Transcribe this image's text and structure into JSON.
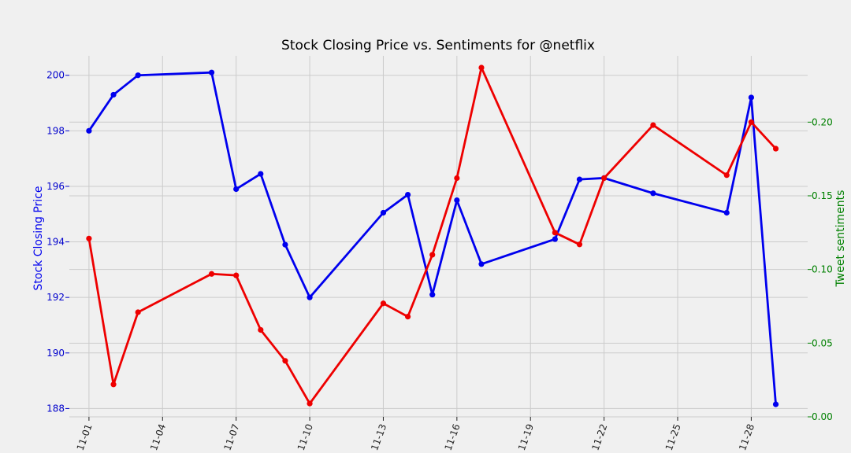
{
  "chart_data": {
    "type": "line",
    "title": "Stock Closing Price vs. Sentiments for @netflix",
    "ylabel_left": "Stock Closing Price",
    "ylabel_right": "Tweet sentiments",
    "x_tick_labels": [
      "11-01",
      "11-04",
      "11-07",
      "11-10",
      "11-13",
      "11-16",
      "11-19",
      "11-22",
      "11-25",
      "11-28"
    ],
    "x_tick_days": [
      1,
      4,
      7,
      10,
      13,
      16,
      19,
      22,
      25,
      28
    ],
    "xlim": [
      0.2,
      30.3
    ],
    "ylim_left": [
      187.7,
      200.7
    ],
    "ylim_right": [
      0.0,
      0.245
    ],
    "y_ticks_left": [
      188,
      190,
      192,
      194,
      196,
      198,
      200
    ],
    "y_tick_labels_left": [
      "188",
      "190",
      "192",
      "194",
      "196",
      "198",
      "200"
    ],
    "y_ticks_right": [
      0.0,
      0.05,
      0.1,
      0.15,
      0.2
    ],
    "y_tick_labels_right": [
      "0.00",
      "0.05",
      "0.10",
      "0.15",
      "0.20"
    ],
    "grid": true,
    "series": [
      {
        "axis": "left",
        "color": "#0000ee",
        "points": [
          [
            1,
            198.0
          ],
          [
            2,
            199.3
          ],
          [
            3,
            200.0
          ],
          [
            6,
            200.1
          ],
          [
            7,
            195.9
          ],
          [
            8,
            196.45
          ],
          [
            9,
            193.9
          ],
          [
            10,
            192.0
          ],
          [
            13,
            195.05
          ],
          [
            14,
            195.7
          ],
          [
            15,
            192.1
          ],
          [
            16,
            195.5
          ],
          [
            17,
            193.2
          ],
          [
            20,
            194.1
          ],
          [
            21,
            196.25
          ],
          [
            22,
            196.3
          ],
          [
            24,
            195.75
          ],
          [
            27,
            195.05
          ],
          [
            28,
            199.2
          ],
          [
            29,
            188.15
          ]
        ]
      },
      {
        "axis": "right",
        "color": "#ee0000",
        "points": [
          [
            1,
            0.121
          ],
          [
            2,
            0.022
          ],
          [
            3,
            0.071
          ],
          [
            6,
            0.097
          ],
          [
            7,
            0.096
          ],
          [
            8,
            0.059
          ],
          [
            9,
            0.038
          ],
          [
            10,
            0.009
          ],
          [
            13,
            0.077
          ],
          [
            14,
            0.068
          ],
          [
            15,
            0.11
          ],
          [
            16,
            0.162
          ],
          [
            17,
            0.237
          ],
          [
            20,
            0.125
          ],
          [
            21,
            0.117
          ],
          [
            22,
            0.162
          ],
          [
            24,
            0.198
          ],
          [
            27,
            0.164
          ],
          [
            28,
            0.2
          ],
          [
            29,
            0.182
          ]
        ]
      }
    ]
  }
}
